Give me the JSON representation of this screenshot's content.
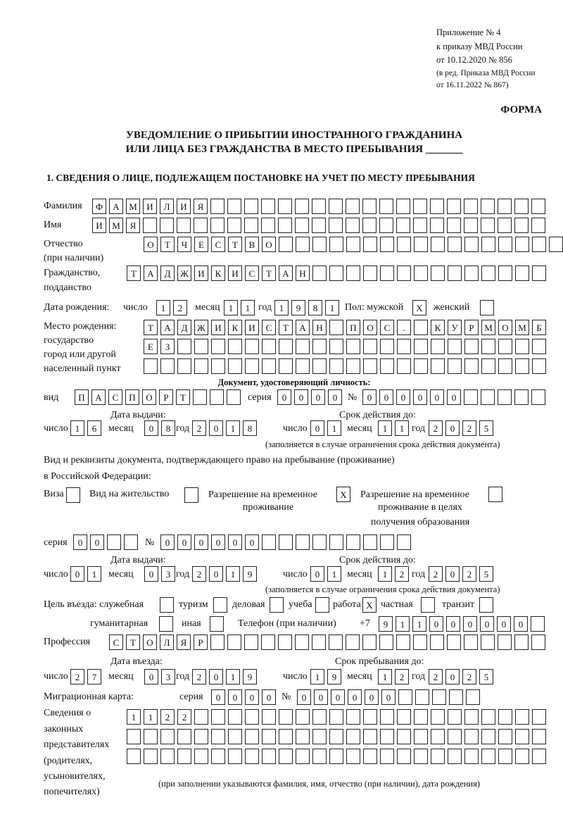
{
  "header": {
    "appendix": "Приложение № 4",
    "order": "к приказу МВД России",
    "order_date": "от 10.12.2020 № 856",
    "revision_1": "(в ред. Приказа МВД России",
    "revision_2": "от 16.11.2022 № 867)",
    "form_label": "ФОРМА",
    "title_1": "УВЕДОМЛЕНИЕ О ПРИБЫТИИ ИНОСТРАННОГО ГРАЖДАНИНА",
    "title_2": "ИЛИ ЛИЦА БЕЗ ГРАЖДАНСТВА В МЕСТО ПРЕБЫВАНИЯ _______",
    "section_1": "1. СВЕДЕНИЯ О ЛИЦЕ, ПОДЛЕЖАЩЕМ ПОСТАНОВКЕ НА УЧЕТ ПО МЕСТУ ПРЕБЫВАНИЯ"
  },
  "labels": {
    "surname": "Фамилия",
    "name": "Имя",
    "patronymic_1": "Отчество",
    "patronymic_2": "(при наличии)",
    "citizenship_1": "Гражданство,",
    "citizenship_2": "подданство",
    "birth_date": "Дата рождения:",
    "day": "число",
    "month": "месяц",
    "year": "год",
    "sex": "Пол: мужской",
    "female": "женский",
    "birthplace_1": "Место рождения:",
    "birthplace_2": "государство",
    "birthplace_3": "город или другой",
    "birthplace_4": "населенный пункт",
    "id_doc": "Документ, удостоверяющий личность:",
    "kind": "вид",
    "series": "серия",
    "number": "№",
    "issue_date": "Дата выдачи:",
    "valid_until": "Срок действия до:",
    "valid_note": "(заполняется в случае ограничения срока действия документа)",
    "right_doc_1": "Вид и реквизиты документа, подтверждающего право на пребывание (проживание)",
    "right_doc_2": "в Российской Федерации:",
    "visa": "Виза",
    "residence": "Вид на жительство",
    "temp_permit_1": "Разрешение на временное",
    "temp_permit_2": "проживание",
    "edu_permit_1": "Разрешение на временное",
    "edu_permit_2": "проживание в целях",
    "edu_permit_3": "получения образования",
    "purpose": "Цель въезда: служебная",
    "tourism": "туризм",
    "business": "деловая",
    "study": "учеба",
    "work": "работа",
    "private": "частная",
    "transit": "транзит",
    "humanitarian": "гуманитарная",
    "other": "иная",
    "phone": "Телефон (при наличии)",
    "phone_prefix": "+7",
    "profession": "Профессия",
    "entry_date": "Дата въезда:",
    "stay_until": "Срок пребывания до:",
    "migration_card": "Миграционная карта:",
    "reps_1": "Сведения о",
    "reps_2": "законных",
    "reps_3": "представителях",
    "reps_4": "(родителях,",
    "reps_5": "усыновителях,",
    "reps_6": "попечителях)",
    "reps_note": "(при заполнении указываются фамилия, имя, отчество (при наличии), дата рождения)"
  },
  "fields": {
    "surname": [
      "Ф",
      "А",
      "М",
      "И",
      "Л",
      "И",
      "Я",
      "",
      "",
      "",
      "",
      "",
      "",
      "",
      "",
      "",
      "",
      "",
      "",
      "",
      "",
      "",
      "",
      "",
      "",
      "",
      ""
    ],
    "name": [
      "И",
      "М",
      "Я",
      "",
      "",
      "",
      "",
      "",
      "",
      "",
      "",
      "",
      "",
      "",
      "",
      "",
      "",
      "",
      "",
      "",
      "",
      "",
      "",
      "",
      "",
      "",
      ""
    ],
    "patronymic": [
      "О",
      "Т",
      "Ч",
      "Е",
      "С",
      "Т",
      "В",
      "О",
      "",
      "",
      "",
      "",
      "",
      "",
      "",
      "",
      "",
      "",
      "",
      "",
      "",
      "",
      "",
      "",
      ""
    ],
    "citizenship": [
      "Т",
      "А",
      "Д",
      "Ж",
      "И",
      "К",
      "И",
      "С",
      "Т",
      "А",
      "Н",
      "",
      "",
      "",
      "",
      "",
      "",
      "",
      "",
      "",
      "",
      "",
      "",
      "",
      ""
    ],
    "birth_day": [
      "1",
      "2"
    ],
    "birth_month": [
      "1",
      "1"
    ],
    "birth_year": [
      "1",
      "9",
      "8",
      "1"
    ],
    "sex_male": [
      "X"
    ],
    "sex_female": [
      ""
    ],
    "birthplace_1": [
      "Т",
      "А",
      "Д",
      "Ж",
      "И",
      "К",
      "И",
      "С",
      "Т",
      "А",
      "Н",
      "",
      "П",
      "О",
      "С",
      ".",
      "",
      "К",
      "У",
      "Р",
      "М",
      "О",
      "М",
      "Б"
    ],
    "birthplace_2": [
      "Е",
      "З",
      "",
      "",
      "",
      "",
      "",
      "",
      "",
      "",
      "",
      "",
      "",
      "",
      "",
      "",
      "",
      "",
      "",
      "",
      "",
      "",
      "",
      ""
    ],
    "birthplace_3": [
      "",
      "",
      "",
      "",
      "",
      "",
      "",
      "",
      "",
      "",
      "",
      "",
      "",
      "",
      "",
      "",
      "",
      "",
      "",
      "",
      "",
      "",
      "",
      ""
    ],
    "id_kind": [
      "П",
      "А",
      "С",
      "П",
      "О",
      "Р",
      "Т",
      "",
      "",
      ""
    ],
    "id_series": [
      "0",
      "0",
      "0",
      "0"
    ],
    "id_number": [
      "0",
      "0",
      "0",
      "0",
      "0",
      "0",
      "",
      "",
      "",
      "",
      ""
    ],
    "id_issue_day": [
      "1",
      "6"
    ],
    "id_issue_month": [
      "0",
      "8"
    ],
    "id_issue_year": [
      "2",
      "0",
      "1",
      "8"
    ],
    "id_valid_day": [
      "0",
      "1"
    ],
    "id_valid_month": [
      "1",
      "1"
    ],
    "id_valid_year": [
      "2",
      "0",
      "2",
      "5"
    ],
    "visa": [
      ""
    ],
    "residence": [
      ""
    ],
    "temp_permit": [
      "X"
    ],
    "edu_permit": [
      ""
    ],
    "rd_series": [
      "0",
      "0",
      "",
      ""
    ],
    "rd_number": [
      "0",
      "0",
      "0",
      "0",
      "0",
      "0",
      "",
      "",
      "",
      "",
      "",
      "",
      "",
      "",
      ""
    ],
    "rd_issue_day": [
      "0",
      "1"
    ],
    "rd_issue_month": [
      "0",
      "3"
    ],
    "rd_issue_year": [
      "2",
      "0",
      "1",
      "9"
    ],
    "rd_valid_day": [
      "0",
      "1"
    ],
    "rd_valid_month": [
      "1",
      "2"
    ],
    "rd_valid_year": [
      "2",
      "0",
      "2",
      "5"
    ],
    "p_official": [
      ""
    ],
    "p_tourism": [
      ""
    ],
    "p_business": [
      ""
    ],
    "p_study": [
      ""
    ],
    "p_work": [
      "X"
    ],
    "p_private": [
      ""
    ],
    "p_transit": [
      ""
    ],
    "p_humanitarian": [
      ""
    ],
    "p_other": [
      ""
    ],
    "phone": [
      "9",
      "1",
      "1",
      "0",
      "0",
      "0",
      "0",
      "0",
      "0",
      ""
    ],
    "profession": [
      "С",
      "Т",
      "О",
      "Л",
      "Я",
      "Р",
      "",
      "",
      "",
      "",
      "",
      "",
      "",
      "",
      "",
      "",
      "",
      "",
      "",
      "",
      "",
      "",
      "",
      "",
      "",
      ""
    ],
    "entry_day": [
      "2",
      "7"
    ],
    "entry_month": [
      "0",
      "3"
    ],
    "entry_year": [
      "2",
      "0",
      "1",
      "9"
    ],
    "stay_day": [
      "1",
      "9"
    ],
    "stay_month": [
      "1",
      "2"
    ],
    "stay_year": [
      "2",
      "0",
      "2",
      "5"
    ],
    "mc_series": [
      "0",
      "0",
      "0",
      "0"
    ],
    "mc_number": [
      "0",
      "0",
      "0",
      "0",
      "0",
      "0",
      "",
      "",
      "",
      "",
      ""
    ],
    "reps_1": [
      "1",
      "1",
      "2",
      "2",
      "",
      "",
      "",
      "",
      "",
      "",
      "",
      "",
      "",
      "",
      "",
      "",
      "",
      "",
      "",
      "",
      "",
      "",
      "",
      "",
      ""
    ],
    "reps_2": [
      "",
      "",
      "",
      "",
      "",
      "",
      "",
      "",
      "",
      "",
      "",
      "",
      "",
      "",
      "",
      "",
      "",
      "",
      "",
      "",
      "",
      "",
      "",
      "",
      ""
    ],
    "reps_3": [
      "",
      "",
      "",
      "",
      "",
      "",
      "",
      "",
      "",
      "",
      "",
      "",
      "",
      "",
      "",
      "",
      "",
      "",
      "",
      "",
      "",
      "",
      "",
      "",
      ""
    ]
  }
}
